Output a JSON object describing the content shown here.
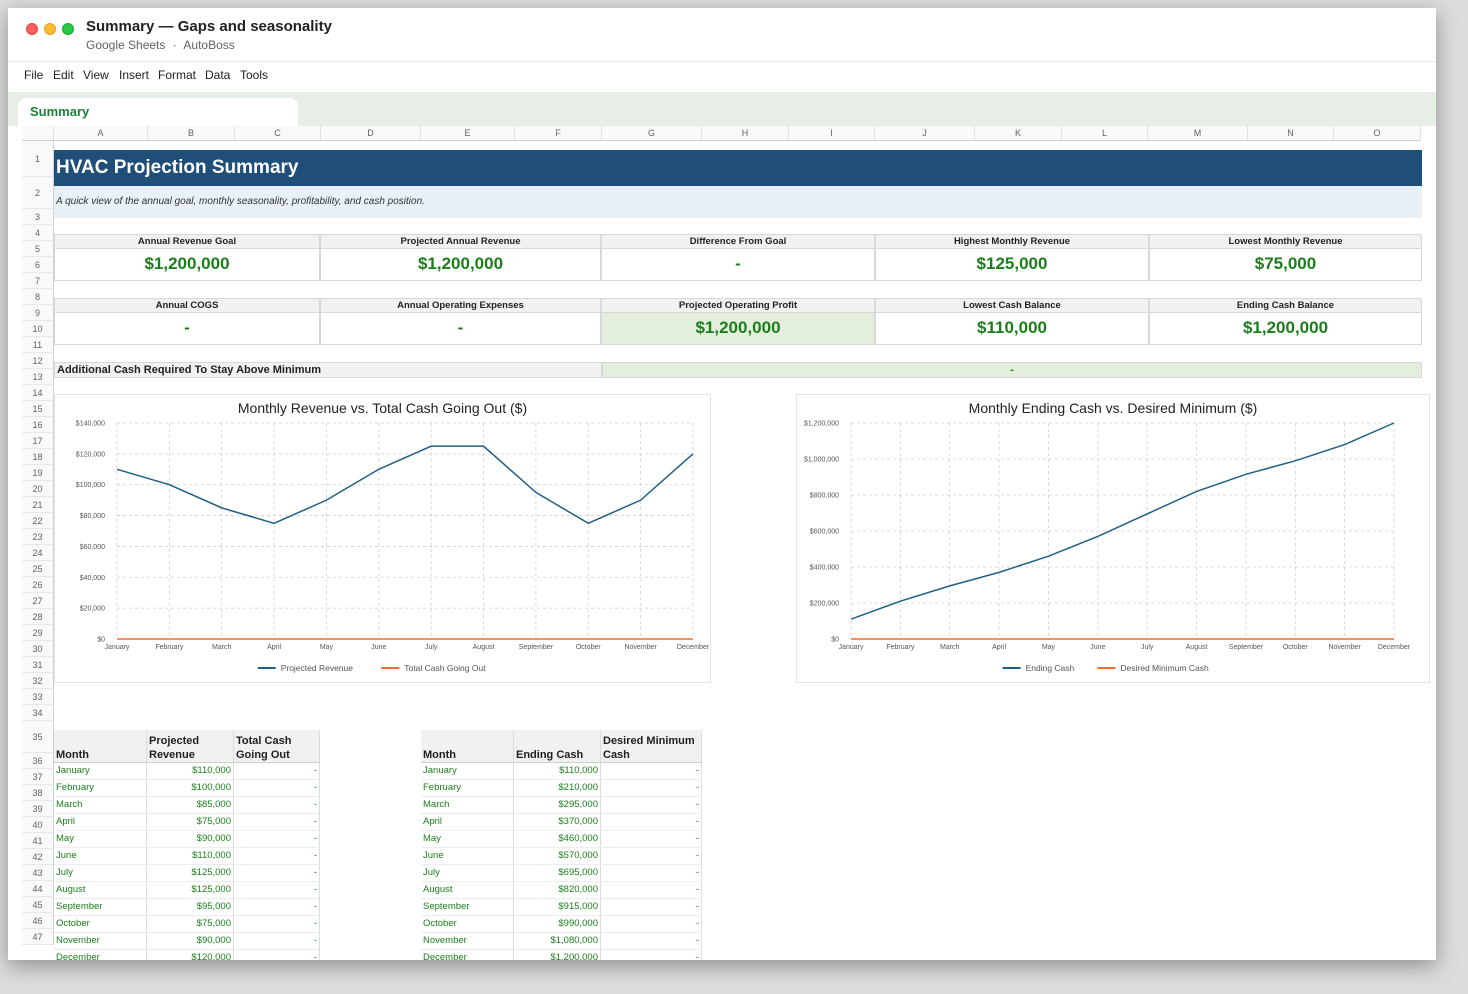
{
  "window": {
    "title": "Summary — Gaps and seasonality",
    "app": "Google Sheets",
    "account": "AutoBoss",
    "separator": "·"
  },
  "menu": [
    "File",
    "Edit",
    "View",
    "Insert",
    "Format",
    "Data",
    "Tools"
  ],
  "sheet_tab": "Summary",
  "columns": [
    "A",
    "B",
    "C",
    "D",
    "E",
    "F",
    "G",
    "H",
    "I",
    "J",
    "K",
    "L",
    "M",
    "N",
    "O"
  ],
  "rows": [
    "1",
    "2",
    "3",
    "4",
    "5",
    "6",
    "7",
    "8",
    "9",
    "10",
    "11",
    "12",
    "13",
    "14",
    "15",
    "16",
    "17",
    "18",
    "19",
    "20",
    "21",
    "22",
    "23",
    "24",
    "25",
    "26",
    "27",
    "28",
    "29",
    "30",
    "31",
    "32",
    "33",
    "34",
    "35",
    "36",
    "37",
    "38",
    "39",
    "40",
    "41",
    "42",
    "43",
    "44",
    "45",
    "46",
    "47"
  ],
  "title": "HVAC Projection Summary",
  "subtitle": "A quick view of the annual goal, monthly seasonality, profitability, and cash position.",
  "kpis_row1": [
    {
      "label": "Annual Revenue Goal",
      "value": "$1,200,000"
    },
    {
      "label": "Projected Annual Revenue",
      "value": "$1,200,000"
    },
    {
      "label": "Difference From Goal",
      "value": "-"
    },
    {
      "label": "Highest Monthly Revenue",
      "value": "$125,000"
    },
    {
      "label": "Lowest Monthly Revenue",
      "value": "$75,000"
    }
  ],
  "kpis_row2": [
    {
      "label": "Annual COGS",
      "value": "-"
    },
    {
      "label": "Annual Operating Expenses",
      "value": "-"
    },
    {
      "label": "Projected Operating Profit",
      "value": "$1,200,000"
    },
    {
      "label": "Lowest Cash Balance",
      "value": "$110,000"
    },
    {
      "label": "Ending Cash Balance",
      "value": "$1,200,000"
    }
  ],
  "additional_cash": {
    "label": "Additional Cash Required To Stay Above Minimum",
    "value": "-"
  },
  "colors": {
    "series1": "#1f5f86",
    "series2": "#f26b2c",
    "accent_green": "#1a7f1a",
    "title_band": "#1f4e79"
  },
  "chart_data": [
    {
      "type": "line",
      "title": "Monthly Revenue vs. Total Cash Going Out ($)",
      "categories": [
        "January",
        "February",
        "March",
        "April",
        "May",
        "June",
        "July",
        "August",
        "September",
        "October",
        "November",
        "December"
      ],
      "series": [
        {
          "name": "Projected Revenue",
          "values": [
            110000,
            100000,
            85000,
            75000,
            90000,
            110000,
            125000,
            125000,
            95000,
            75000,
            90000,
            120000
          ]
        },
        {
          "name": "Total Cash Going Out",
          "values": [
            0,
            0,
            0,
            0,
            0,
            0,
            0,
            0,
            0,
            0,
            0,
            0
          ]
        }
      ],
      "ylim": [
        0,
        140000
      ],
      "yticks": [
        "$0",
        "$20,000",
        "$40,000",
        "$60,000",
        "$80,000",
        "$100,000",
        "$120,000",
        "$140,000"
      ],
      "grid": true,
      "legend": "bottom"
    },
    {
      "type": "line",
      "title": "Monthly Ending Cash vs. Desired Minimum ($)",
      "categories": [
        "January",
        "February",
        "March",
        "April",
        "May",
        "June",
        "July",
        "August",
        "September",
        "October",
        "November",
        "December"
      ],
      "series": [
        {
          "name": "Ending Cash",
          "values": [
            110000,
            210000,
            295000,
            370000,
            460000,
            570000,
            695000,
            820000,
            915000,
            990000,
            1080000,
            1200000
          ]
        },
        {
          "name": "Desired Minimum Cash",
          "values": [
            0,
            0,
            0,
            0,
            0,
            0,
            0,
            0,
            0,
            0,
            0,
            0
          ]
        }
      ],
      "ylim": [
        0,
        1200000
      ],
      "yticks": [
        "$0",
        "$200,000",
        "$400,000",
        "$600,000",
        "$800,000",
        "$1,000,000",
        "$1,200,000"
      ],
      "grid": true,
      "legend": "bottom"
    }
  ],
  "table1": {
    "headers": [
      "Month",
      "Projected Revenue",
      "Total Cash Going Out"
    ],
    "rows": [
      [
        "January",
        "$110,000",
        "-"
      ],
      [
        "February",
        "$100,000",
        "-"
      ],
      [
        "March",
        "$85,000",
        "-"
      ],
      [
        "April",
        "$75,000",
        "-"
      ],
      [
        "May",
        "$90,000",
        "-"
      ],
      [
        "June",
        "$110,000",
        "-"
      ],
      [
        "July",
        "$125,000",
        "-"
      ],
      [
        "August",
        "$125,000",
        "-"
      ],
      [
        "September",
        "$95,000",
        "-"
      ],
      [
        "October",
        "$75,000",
        "-"
      ],
      [
        "November",
        "$90,000",
        "-"
      ],
      [
        "December",
        "$120,000",
        "-"
      ]
    ]
  },
  "table2": {
    "headers": [
      "Month",
      "Ending Cash",
      "Desired Minimum Cash"
    ],
    "rows": [
      [
        "January",
        "$110,000",
        "-"
      ],
      [
        "February",
        "$210,000",
        "-"
      ],
      [
        "March",
        "$295,000",
        "-"
      ],
      [
        "April",
        "$370,000",
        "-"
      ],
      [
        "May",
        "$460,000",
        "-"
      ],
      [
        "June",
        "$570,000",
        "-"
      ],
      [
        "July",
        "$695,000",
        "-"
      ],
      [
        "August",
        "$820,000",
        "-"
      ],
      [
        "September",
        "$915,000",
        "-"
      ],
      [
        "October",
        "$990,000",
        "-"
      ],
      [
        "November",
        "$1,080,000",
        "-"
      ],
      [
        "December",
        "$1,200,000",
        "-"
      ]
    ]
  }
}
